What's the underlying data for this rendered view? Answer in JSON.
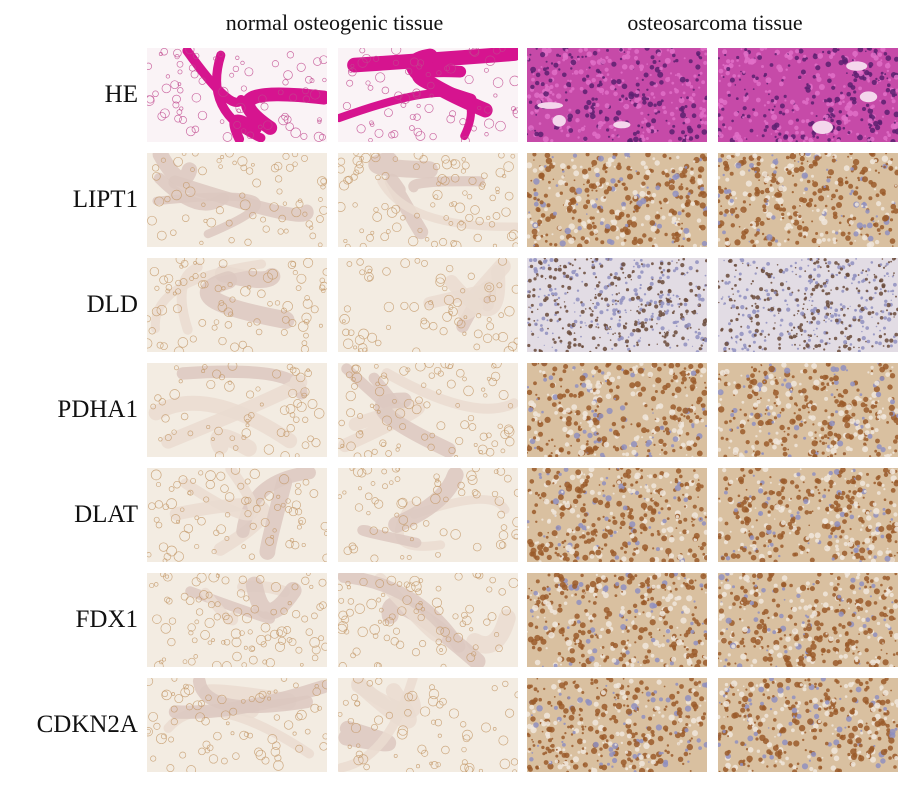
{
  "column_headers": {
    "normal": "normal osteogenic tissue",
    "osteosarcoma": "osteosarcoma tissue"
  },
  "rows": [
    {
      "label": "HE",
      "stain": "he"
    },
    {
      "label": "LIPT1",
      "stain": "ihc-high"
    },
    {
      "label": "DLD",
      "stain": "ihc-dots"
    },
    {
      "label": "PDHA1",
      "stain": "ihc-high"
    },
    {
      "label": "DLAT",
      "stain": "ihc-high"
    },
    {
      "label": "FDX1",
      "stain": "ihc-high"
    },
    {
      "label": "CDKN2A",
      "stain": "ihc-high"
    }
  ],
  "panels_per_group": 2,
  "colors": {
    "he_background": "#f6e9f0",
    "he_trabecula": "#d6148f",
    "he_tumor_base": "#c64aa8",
    "he_nuclei": "#5a2070",
    "ihc_background": "#f3ece2",
    "ihc_bone": "#eadcd0",
    "ihc_brown": "#9a5a2a",
    "ihc_light": "#d9c0a0",
    "hematoxylin_blue": "#8f8fc0"
  }
}
